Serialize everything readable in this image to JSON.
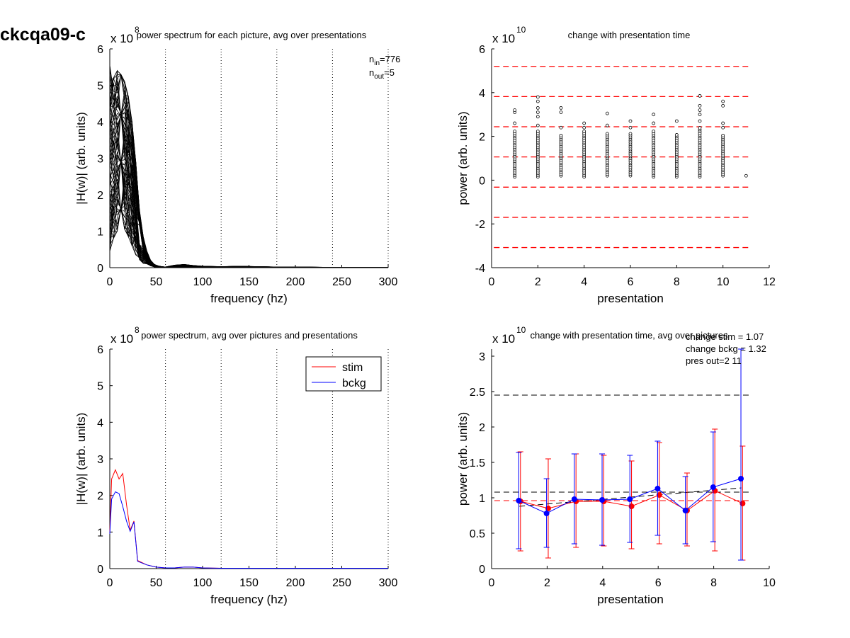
{
  "figure_id": "ckcqa09-c",
  "chart_data": [
    {
      "type": "line",
      "title": "power spectrum for each picture, avg over presentations",
      "exponent": "x 10",
      "exponent_power": "8",
      "xlabel": "frequency (hz)",
      "ylabel": "|H(w)| (arb. units)",
      "xlim": [
        0,
        300
      ],
      "ylim": [
        0,
        6
      ],
      "xticks": [
        0,
        50,
        100,
        150,
        200,
        250,
        300
      ],
      "yticks": [
        0,
        1,
        2,
        3,
        4,
        5,
        6
      ],
      "vlines": [
        60,
        120,
        180,
        240,
        300
      ],
      "annotation": {
        "n_in_label": "n",
        "n_in_sub": "in",
        "n_in_value": "=776",
        "n_out_label": "n",
        "n_out_sub": "out",
        "n_out_value": "=5"
      },
      "x": [
        0,
        4,
        8,
        12,
        16,
        20,
        24,
        28,
        32,
        36,
        40,
        44,
        48,
        52,
        56,
        60,
        70,
        80,
        90,
        100,
        120,
        140,
        160,
        180,
        200,
        240,
        300
      ],
      "envelope": {
        "upper": [
          5.55,
          5.2,
          5.4,
          5.3,
          5.1,
          4.7,
          4.0,
          2.9,
          1.6,
          0.85,
          0.45,
          0.2,
          0.09,
          0.05,
          0.03,
          0.02,
          0.07,
          0.09,
          0.06,
          0.04,
          0.03,
          0.04,
          0.03,
          0.02,
          0.02,
          0.01,
          0.01
        ],
        "lower": [
          0.45,
          0.8,
          1.0,
          1.2,
          1.05,
          0.85,
          0.6,
          0.35,
          0.2,
          0.12,
          0.08,
          0.05,
          0.02,
          0.01,
          0.0,
          0.0,
          0.01,
          0.01,
          0.0,
          0.0,
          0.0,
          0.0,
          0.0,
          0.0,
          0.0,
          0.0,
          0.0
        ]
      },
      "series_count": 60
    },
    {
      "type": "scatter",
      "title": "change with presentation time",
      "exponent": "x 10",
      "exponent_power": "10",
      "xlabel": "presentation",
      "ylabel": "power (arb. units)",
      "xlim": [
        0,
        12
      ],
      "ylim": [
        -4,
        6
      ],
      "xticks": [
        0,
        2,
        4,
        6,
        8,
        10,
        12
      ],
      "yticks": [
        -4,
        -2,
        0,
        2,
        4,
        6
      ],
      "hlines": [
        5.2,
        3.82,
        2.44,
        1.06,
        -0.32,
        -1.7,
        -3.08
      ],
      "hline_color": "#ff0000",
      "columns": [
        {
          "x": 1,
          "min": 0.15,
          "max": 2.25,
          "outliers": [
            2.6,
            3.1,
            3.2
          ]
        },
        {
          "x": 2,
          "min": 0.15,
          "max": 2.3,
          "outliers": [
            2.5,
            2.9,
            3.1,
            3.3,
            3.6,
            3.8
          ]
        },
        {
          "x": 3,
          "min": 0.2,
          "max": 2.1,
          "outliers": [
            2.4,
            3.1,
            3.3
          ]
        },
        {
          "x": 4,
          "min": 0.15,
          "max": 2.25,
          "outliers": [
            2.4,
            2.6
          ]
        },
        {
          "x": 5,
          "min": 0.2,
          "max": 2.2,
          "outliers": [
            2.5,
            3.05
          ]
        },
        {
          "x": 6,
          "min": 0.2,
          "max": 2.2,
          "outliers": [
            2.4,
            2.7
          ]
        },
        {
          "x": 7,
          "min": 0.15,
          "max": 2.3,
          "outliers": [
            2.6,
            3.0
          ]
        },
        {
          "x": 8,
          "min": 0.15,
          "max": 2.1,
          "outliers": [
            2.7
          ]
        },
        {
          "x": 9,
          "min": 0.15,
          "max": 2.4,
          "outliers": [
            2.7,
            3.0,
            3.2,
            3.4,
            3.85
          ]
        },
        {
          "x": 10,
          "min": 0.2,
          "max": 2.1,
          "outliers": [
            2.4,
            2.6,
            3.4,
            3.6
          ]
        }
      ],
      "single_points": [
        {
          "x": 11,
          "y": 0.2
        }
      ]
    },
    {
      "type": "line",
      "title": "power spectrum, avg over pictures and presentations",
      "exponent": "x 10",
      "exponent_power": "8",
      "xlabel": "frequency (hz)",
      "ylabel": "|H(w)| (arb. units)",
      "xlim": [
        0,
        300
      ],
      "ylim": [
        0,
        6
      ],
      "xticks": [
        0,
        50,
        100,
        150,
        200,
        250,
        300
      ],
      "yticks": [
        0,
        1,
        2,
        3,
        4,
        5,
        6
      ],
      "vlines": [
        60,
        120,
        180,
        240,
        300
      ],
      "legend_position": "top-right",
      "x": [
        0,
        2,
        6,
        10,
        14,
        18,
        22,
        26,
        30,
        40,
        50,
        60,
        70,
        80,
        90,
        100,
        120,
        150,
        200,
        250,
        300
      ],
      "series": [
        {
          "name": "stim",
          "color": "#ff0000",
          "values": [
            1.0,
            2.45,
            2.7,
            2.45,
            2.6,
            1.75,
            1.05,
            1.3,
            0.22,
            0.1,
            0.04,
            0.02,
            0.02,
            0.04,
            0.04,
            0.02,
            0.01,
            0.01,
            0.01,
            0.01,
            0.01
          ]
        },
        {
          "name": "bckg",
          "color": "#0000ff",
          "values": [
            0.95,
            1.9,
            2.1,
            2.05,
            1.7,
            1.3,
            1.02,
            1.28,
            0.2,
            0.1,
            0.04,
            0.02,
            0.02,
            0.04,
            0.04,
            0.02,
            0.01,
            0.01,
            0.01,
            0.01,
            0.01
          ]
        }
      ]
    },
    {
      "type": "line",
      "title": "change with presentation time, avg over pictures",
      "exponent": "x 10",
      "exponent_power": "10",
      "xlabel": "presentation",
      "ylabel": "power (arb. units)",
      "xlim": [
        0,
        10
      ],
      "ylim": [
        0,
        3.1
      ],
      "xticks": [
        0,
        2,
        4,
        6,
        8,
        10
      ],
      "yticks": [
        0,
        0.5,
        1,
        1.5,
        2,
        2.5,
        3
      ],
      "ytick_labels": [
        "0",
        "0.5",
        "1",
        "1.5",
        "2",
        "2.5",
        "3"
      ],
      "annotations": [
        "change stim = 1.07",
        "change bckg = 1.32",
        "pres out=2 11"
      ],
      "hlines": [
        {
          "y": 2.45,
          "color": "#000000"
        },
        {
          "y": 1.08,
          "color": "#000000"
        },
        {
          "y": 0.96,
          "color": "#ff0000"
        }
      ],
      "x": [
        1,
        2,
        3,
        4,
        5,
        6,
        7,
        8,
        9
      ],
      "series": [
        {
          "name": "stim",
          "color": "#ff0000",
          "values": [
            0.95,
            0.85,
            0.95,
            0.95,
            0.88,
            1.04,
            0.82,
            1.1,
            0.92
          ],
          "err_low": [
            0.25,
            0.15,
            0.3,
            0.32,
            0.28,
            0.35,
            0.32,
            0.25,
            0.12
          ],
          "err_high": [
            1.65,
            1.55,
            1.62,
            1.6,
            1.52,
            1.78,
            1.35,
            1.97,
            1.73
          ]
        },
        {
          "name": "bckg",
          "color": "#0000ff",
          "values": [
            0.96,
            0.78,
            0.98,
            0.97,
            0.98,
            1.13,
            0.82,
            1.15,
            1.27
          ],
          "err_low": [
            0.28,
            0.3,
            0.35,
            0.33,
            0.37,
            0.47,
            0.35,
            0.38,
            0.12
          ],
          "err_high": [
            1.64,
            1.27,
            1.62,
            1.62,
            1.6,
            1.8,
            1.3,
            1.93,
            3.1
          ]
        }
      ],
      "trend": {
        "x": [
          1,
          9
        ],
        "y": [
          0.88,
          1.14
        ],
        "color": "#000000"
      }
    }
  ]
}
